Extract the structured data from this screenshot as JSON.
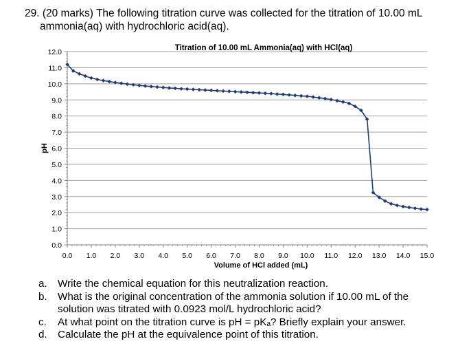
{
  "question": {
    "line1": "29. (20 marks) The following titration curve was collected for the titration of 10.00 mL",
    "line2": "ammonia(aq) with hydrochloric acid(aq)."
  },
  "chart_data": {
    "type": "line",
    "title": "Titration of 10.00 mL Ammonia(aq) with HCl(aq)",
    "xlabel": "Volume of HCl added (mL)",
    "ylabel": "pH",
    "xlim": [
      0,
      15
    ],
    "ylim": [
      0,
      12
    ],
    "x_ticks": [
      "0.0",
      "1.0",
      "2.0",
      "3.0",
      "4.0",
      "5.0",
      "6.0",
      "7.0",
      "8.0",
      "9.0",
      "10.0",
      "11.0",
      "12.0",
      "13.0",
      "14.0",
      "15.0"
    ],
    "y_ticks": [
      "0.0",
      "1.0",
      "2.0",
      "3.0",
      "4.0",
      "5.0",
      "6.0",
      "7.0",
      "8.0",
      "9.0",
      "10.0",
      "11.0",
      "12.0"
    ],
    "grid": "horizontal",
    "series": [
      {
        "color": "#1f3b7a",
        "x": [
          0.0,
          0.25,
          0.5,
          0.75,
          1.0,
          1.25,
          1.5,
          1.75,
          2.0,
          2.25,
          2.5,
          2.75,
          3.0,
          3.25,
          3.5,
          3.75,
          4.0,
          4.25,
          4.5,
          4.75,
          5.0,
          5.25,
          5.5,
          5.75,
          6.0,
          6.25,
          6.5,
          6.75,
          7.0,
          7.25,
          7.5,
          7.75,
          8.0,
          8.25,
          8.5,
          8.75,
          9.0,
          9.25,
          9.5,
          9.75,
          10.0,
          10.25,
          10.5,
          10.75,
          11.0,
          11.25,
          11.5,
          11.75,
          12.0,
          12.25,
          12.5,
          12.75,
          13.0,
          13.25,
          13.5,
          13.75,
          14.0,
          14.25,
          14.5,
          14.75,
          15.0
        ],
        "y": [
          11.2,
          10.8,
          10.62,
          10.48,
          10.36,
          10.27,
          10.2,
          10.14,
          10.08,
          10.03,
          9.98,
          9.94,
          9.9,
          9.86,
          9.83,
          9.8,
          9.77,
          9.74,
          9.72,
          9.69,
          9.67,
          9.65,
          9.63,
          9.61,
          9.59,
          9.57,
          9.55,
          9.53,
          9.51,
          9.49,
          9.47,
          9.45,
          9.43,
          9.41,
          9.39,
          9.36,
          9.34,
          9.31,
          9.28,
          9.25,
          9.22,
          9.18,
          9.13,
          9.08,
          9.02,
          8.95,
          8.87,
          8.78,
          8.6,
          8.35,
          7.8,
          3.25,
          2.95,
          2.72,
          2.55,
          2.45,
          2.38,
          2.32,
          2.27,
          2.22,
          2.19
        ]
      }
    ]
  },
  "parts": [
    {
      "label": "a.",
      "lines": [
        "Write the chemical equation for this neutralization reaction."
      ]
    },
    {
      "label": "b.",
      "lines": [
        "What is the original concentration of the ammonia solution if 10.00 mL of the",
        "solution was titrated with 0.0923 mol/L hydrochloric acid?"
      ]
    },
    {
      "label": "c.",
      "lines": [
        "At what point on the titration curve is pH = pKₐ? Briefly explain your answer."
      ]
    },
    {
      "label": "d.",
      "lines": [
        "Calculate the pH at the equivalence point of this titration."
      ]
    }
  ]
}
